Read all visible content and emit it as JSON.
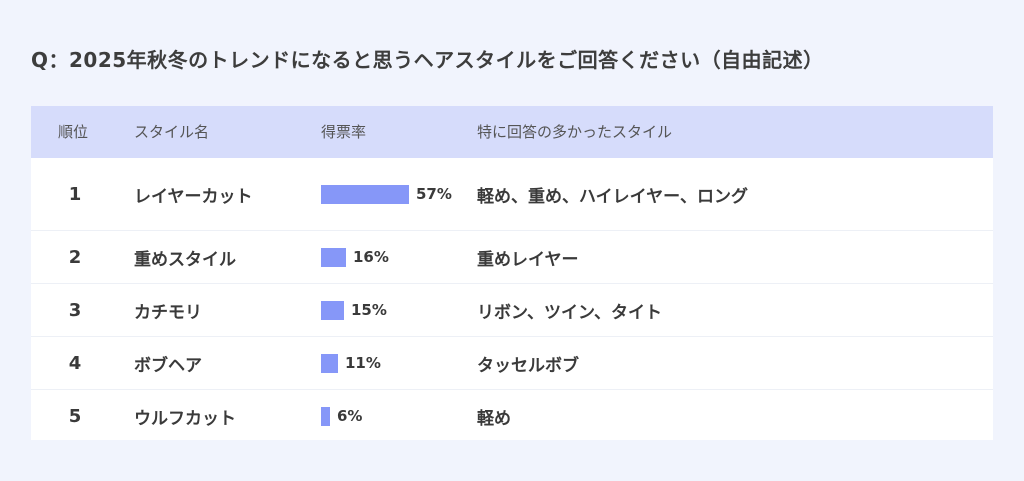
{
  "title": "Q：2025年秋冬のトレンドになると思うヘアスタイルをご回答ください（自由記述）",
  "headers": {
    "rank": "順位",
    "style": "スタイル名",
    "vote_rate": "得票率",
    "features": "特に回答の多かったスタイル"
  },
  "colors": {
    "bar": "#8697f8",
    "header_bg": "#d6dcfb",
    "page_bg": "#f1f4fd"
  },
  "chart_data": {
    "type": "bar",
    "categories": [
      "レイヤーカット",
      "重めスタイル",
      "カチモリ",
      "ボブヘア",
      "ウルフカット"
    ],
    "values": [
      57,
      16,
      15,
      11,
      6
    ],
    "unit": "%",
    "title": "Q：2025年秋冬のトレンドになると思うヘアスタイルをご回答ください（自由記述）",
    "ylim": [
      0,
      100
    ]
  },
  "rows": [
    {
      "rank": "1",
      "style": "レイヤーカット",
      "percent": 57,
      "percent_label": "57%",
      "comment": "軽め、重め、ハイレイヤー、ロング"
    },
    {
      "rank": "2",
      "style": "重めスタイル",
      "percent": 16,
      "percent_label": "16%",
      "comment": "重めレイヤー"
    },
    {
      "rank": "3",
      "style": "カチモリ",
      "percent": 15,
      "percent_label": "15%",
      "comment": "リボン、ツイン、タイト"
    },
    {
      "rank": "4",
      "style": "ボブヘア",
      "percent": 11,
      "percent_label": "11%",
      "comment": "タッセルボブ"
    },
    {
      "rank": "5",
      "style": "ウルフカット",
      "percent": 6,
      "percent_label": "6%",
      "comment": "軽め"
    }
  ]
}
